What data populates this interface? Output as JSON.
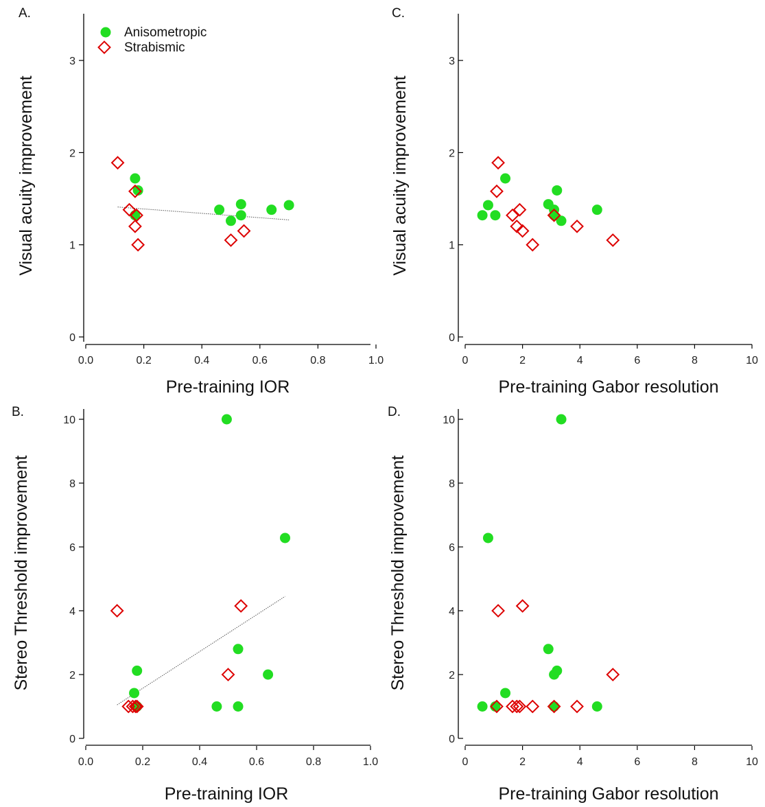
{
  "colors": {
    "anisometropic": "#22dd22",
    "strabismic": "#dd0000",
    "axis": "#000000",
    "trendline": "#555555"
  },
  "legend": {
    "anisometropic_label": "Anisometropic",
    "strabismic_label": "Strabismic",
    "anisometropic_marker": "filled-circle",
    "strabismic_marker": "open-diamond"
  },
  "chart_data": [
    {
      "id": "A",
      "panel_label": "A.",
      "type": "scatter",
      "xlabel": "Pre-training IOR",
      "ylabel": "Visual acuity improvement",
      "xlim": [
        0,
        1
      ],
      "ylim": [
        0,
        3.5
      ],
      "xticks": [
        "0.0",
        "0.2",
        "0.4",
        "0.6",
        "0.8",
        "1.0"
      ],
      "xtick_values": [
        0,
        0.2,
        0.4,
        0.6,
        0.8,
        1.0
      ],
      "yticks": [
        "0",
        "1",
        "2",
        "3"
      ],
      "ytick_values": [
        0,
        1,
        2,
        3
      ],
      "legend": true,
      "trendline": {
        "x": [
          0.11,
          0.7
        ],
        "y": [
          1.41,
          1.27
        ]
      },
      "series": [
        {
          "name": "Anisometropic",
          "x": [
            0.17,
            0.18,
            0.17,
            0.46,
            0.5,
            0.535,
            0.535,
            0.64,
            0.7
          ],
          "y": [
            1.72,
            1.59,
            1.32,
            1.38,
            1.26,
            1.44,
            1.32,
            1.38,
            1.43
          ]
        },
        {
          "name": "Strabismic",
          "x": [
            0.11,
            0.17,
            0.15,
            0.175,
            0.17,
            0.18,
            0.5,
            0.545
          ],
          "y": [
            1.89,
            1.58,
            1.38,
            1.32,
            1.2,
            1.0,
            1.05,
            1.15
          ]
        }
      ]
    },
    {
      "id": "C",
      "panel_label": "C.",
      "type": "scatter",
      "xlabel": "Pre-training Gabor resolution",
      "ylabel": "Visual acuity improvement",
      "xlim": [
        0,
        10
      ],
      "ylim": [
        0,
        3.5
      ],
      "xticks": [
        "0",
        "2",
        "4",
        "6",
        "8",
        "10"
      ],
      "xtick_values": [
        0,
        2,
        4,
        6,
        8,
        10
      ],
      "yticks": [
        "0",
        "1",
        "2",
        "3"
      ],
      "ytick_values": [
        0,
        1,
        2,
        3
      ],
      "legend": false,
      "series": [
        {
          "name": "Anisometropic",
          "x": [
            0.6,
            0.8,
            1.05,
            1.4,
            2.9,
            3.1,
            3.2,
            3.1,
            3.35,
            4.6
          ],
          "y": [
            1.32,
            1.43,
            1.32,
            1.72,
            1.44,
            1.38,
            1.59,
            1.32,
            1.26,
            1.38
          ]
        },
        {
          "name": "Strabismic",
          "x": [
            1.15,
            1.1,
            1.65,
            1.9,
            1.8,
            2.0,
            2.35,
            3.1,
            3.9,
            5.15
          ],
          "y": [
            1.89,
            1.58,
            1.32,
            1.38,
            1.2,
            1.15,
            1.0,
            1.32,
            1.2,
            1.05
          ]
        }
      ]
    },
    {
      "id": "B",
      "panel_label": "B.",
      "type": "scatter",
      "xlabel": "Pre-training IOR",
      "ylabel": "Stereo Threshold improvement",
      "xlim": [
        0,
        1
      ],
      "ylim": [
        0,
        10.3
      ],
      "xticks": [
        "0.0",
        "0.2",
        "0.4",
        "0.6",
        "0.8",
        "1.0"
      ],
      "xtick_values": [
        0,
        0.2,
        0.4,
        0.6,
        0.8,
        1.0
      ],
      "yticks": [
        "0",
        "2",
        "4",
        "6",
        "8",
        "10"
      ],
      "ytick_values": [
        0,
        2,
        4,
        6,
        8,
        10
      ],
      "legend": false,
      "trendline": {
        "x": [
          0.11,
          0.7
        ],
        "y": [
          1.05,
          4.45
        ]
      },
      "series": [
        {
          "name": "Anisometropic",
          "x": [
            0.495,
            0.7,
            0.18,
            0.535,
            0.64,
            0.17,
            0.46,
            0.535,
            0.18
          ],
          "y": [
            10.0,
            6.28,
            2.12,
            2.8,
            2.0,
            1.42,
            1.0,
            1.0,
            1.0
          ]
        },
        {
          "name": "Strabismic",
          "x": [
            0.11,
            0.545,
            0.5,
            0.15,
            0.165,
            0.175,
            0.18
          ],
          "y": [
            4.0,
            4.15,
            2.0,
            1.0,
            1.0,
            1.0,
            1.0
          ]
        }
      ]
    },
    {
      "id": "D",
      "panel_label": "D.",
      "type": "scatter",
      "xlabel": "Pre-training Gabor resolution",
      "ylabel": "Stereo Threshold improvement",
      "xlim": [
        0,
        10
      ],
      "ylim": [
        0,
        10.3
      ],
      "xticks": [
        "0",
        "2",
        "4",
        "6",
        "8",
        "10"
      ],
      "xtick_values": [
        0,
        2,
        4,
        6,
        8,
        10
      ],
      "yticks": [
        "0",
        "2",
        "4",
        "6",
        "8",
        "10"
      ],
      "ytick_values": [
        0,
        2,
        4,
        6,
        8,
        10
      ],
      "legend": false,
      "series": [
        {
          "name": "Anisometropic",
          "x": [
            3.35,
            0.8,
            2.9,
            3.2,
            3.1,
            1.4,
            0.6,
            1.05,
            3.1,
            4.6
          ],
          "y": [
            10.0,
            6.28,
            2.8,
            2.12,
            2.0,
            1.42,
            1.0,
            1.0,
            1.0,
            1.0
          ]
        },
        {
          "name": "Strabismic",
          "x": [
            2.0,
            1.15,
            5.15,
            1.1,
            1.65,
            1.8,
            1.9,
            2.35,
            3.1,
            3.9
          ],
          "y": [
            4.15,
            4.0,
            2.0,
            1.0,
            1.0,
            1.0,
            1.0,
            1.0,
            1.0,
            1.0
          ]
        }
      ]
    }
  ]
}
